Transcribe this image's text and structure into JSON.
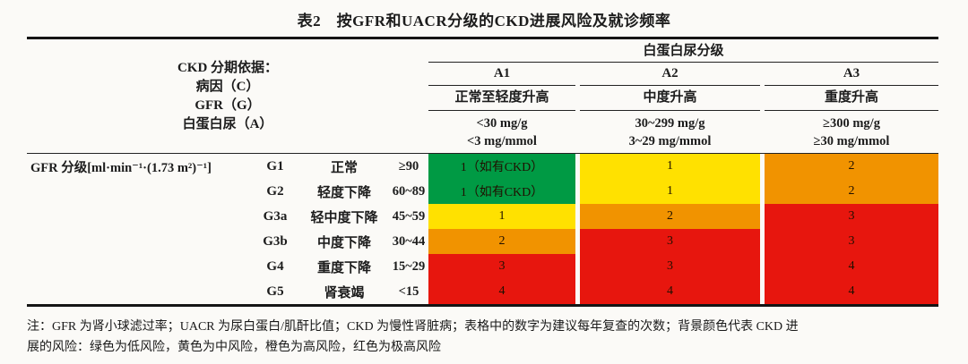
{
  "title": "表2　按GFR和UACR分级的CKD进展风险及就诊频率",
  "header": {
    "albuminuria_group_label": "白蛋白尿分级",
    "stage_basis_lines": [
      "CKD 分期依据：",
      "病因（C）",
      "GFR（G）",
      "白蛋白尿（A）"
    ],
    "columns": [
      {
        "label": "A1",
        "severity": "正常至轻度升高",
        "range1": "<30 mg/g",
        "range2": "<3 mg/mmol"
      },
      {
        "label": "A2",
        "severity": "中度升高",
        "range1": "30~299 mg/g",
        "range2": "3~29 mg/mmol"
      },
      {
        "label": "A3",
        "severity": "重度升高",
        "range1": "≥300 mg/g",
        "range2": "≥30 mg/mmol"
      }
    ]
  },
  "body": {
    "gfr_axis_label": "GFR 分级[ml·min⁻¹·(1.73 m²)⁻¹]",
    "rows": [
      {
        "grade": "G1",
        "desc": "正常",
        "range": "≥90",
        "a1": {
          "text": "1（如有CKD）",
          "risk": "green"
        },
        "a2": {
          "text": "1",
          "risk": "yellow"
        },
        "a3": {
          "text": "2",
          "risk": "orange"
        }
      },
      {
        "grade": "G2",
        "desc": "轻度下降",
        "range": "60~89",
        "a1": {
          "text": "1（如有CKD）",
          "risk": "green"
        },
        "a2": {
          "text": "1",
          "risk": "yellow"
        },
        "a3": {
          "text": "2",
          "risk": "orange"
        }
      },
      {
        "grade": "G3a",
        "desc": "轻中度下降",
        "range": "45~59",
        "a1": {
          "text": "1",
          "risk": "yellow"
        },
        "a2": {
          "text": "2",
          "risk": "orange"
        },
        "a3": {
          "text": "3",
          "risk": "red"
        }
      },
      {
        "grade": "G3b",
        "desc": "中度下降",
        "range": "30~44",
        "a1": {
          "text": "2",
          "risk": "orange"
        },
        "a2": {
          "text": "3",
          "risk": "red"
        },
        "a3": {
          "text": "3",
          "risk": "red"
        }
      },
      {
        "grade": "G4",
        "desc": "重度下降",
        "range": "15~29",
        "a1": {
          "text": "3",
          "risk": "red"
        },
        "a2": {
          "text": "3",
          "risk": "red"
        },
        "a3": {
          "text": "4",
          "risk": "red"
        }
      },
      {
        "grade": "G5",
        "desc": "肾衰竭",
        "range": "<15",
        "a1": {
          "text": "4",
          "risk": "red"
        },
        "a2": {
          "text": "4",
          "risk": "red"
        },
        "a3": {
          "text": "4",
          "risk": "red"
        }
      }
    ]
  },
  "colors": {
    "green": "#009a44",
    "yellow": "#ffe100",
    "orange": "#f19300",
    "red": "#e7160e"
  },
  "note_lines": [
    "注：GFR 为肾小球滤过率；UACR 为尿白蛋白/肌酐比值；CKD 为慢性肾脏病；表格中的数字为建议每年复查的次数；背景颜色代表 CKD 进",
    "展的风险：绿色为低风险，黄色为中风险，橙色为高风险，红色为极高风险"
  ]
}
